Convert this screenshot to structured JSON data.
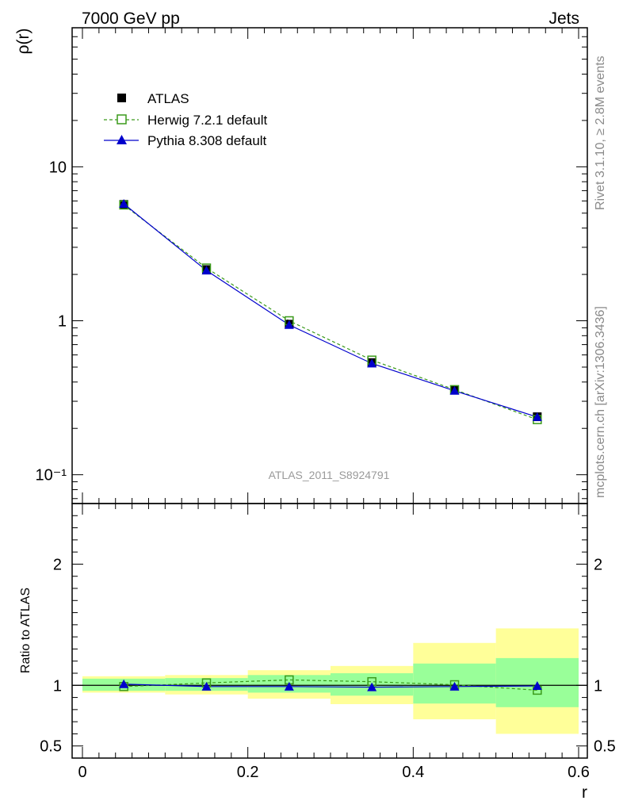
{
  "header": {
    "left": "7000 GeV pp",
    "right": "Jets"
  },
  "side_labels": {
    "rivet": "Rivet 3.1.10, ≥ 2.8M events",
    "source": "mcplots.cern.ch [arXiv:1306.3436]"
  },
  "watermark": "ATLAS_2011_S8924791",
  "chart_data": [
    {
      "type": "line",
      "panel": "main",
      "ylabel": "ρ(r)",
      "yscale": "log",
      "ylim": [
        0.065,
        80
      ],
      "xlim": [
        -0.015,
        0.6
      ],
      "yticks": [
        {
          "value": 10,
          "label": "10"
        },
        {
          "value": 1,
          "label": "1"
        },
        {
          "value": 0.1,
          "label": "10⁻¹"
        }
      ],
      "legend_position": "top-left",
      "x": [
        0.05,
        0.15,
        0.25,
        0.35,
        0.45,
        0.55
      ],
      "series": [
        {
          "name": "ATLAS",
          "marker": "filled-square",
          "color": "#000000",
          "values": [
            5.7,
            2.15,
            0.95,
            0.535,
            0.355,
            0.238
          ]
        },
        {
          "name": "Herwig 7.2.1 default",
          "marker": "open-square",
          "dashed": true,
          "color": "#3a9a1a",
          "values": [
            5.65,
            2.2,
            1.0,
            0.555,
            0.357,
            0.228
          ]
        },
        {
          "name": "Pythia 8.308 default",
          "marker": "filled-triangle",
          "color": "#0000cc",
          "values": [
            5.75,
            2.12,
            0.94,
            0.528,
            0.351,
            0.237
          ]
        }
      ]
    },
    {
      "type": "line",
      "panel": "ratio",
      "ylabel": "Ratio to ATLAS",
      "xlabel": "r",
      "ylim": [
        0.4,
        2.5
      ],
      "yticks": [
        {
          "value": 2,
          "label": "2"
        },
        {
          "value": 1,
          "label": "1"
        },
        {
          "value": 0.5,
          "label": "0.5"
        }
      ],
      "xticks": [
        {
          "value": 0,
          "label": "0"
        },
        {
          "value": 0.2,
          "label": "0.2"
        },
        {
          "value": 0.4,
          "label": "0.4"
        },
        {
          "value": 0.6,
          "label": "0.6"
        }
      ],
      "x": [
        0.05,
        0.15,
        0.25,
        0.35,
        0.45,
        0.55
      ],
      "bins": [
        [
          0.0,
          0.1
        ],
        [
          0.1,
          0.2
        ],
        [
          0.2,
          0.3
        ],
        [
          0.3,
          0.4
        ],
        [
          0.4,
          0.5
        ],
        [
          0.5,
          0.6
        ]
      ],
      "band_inner": [
        [
          0.955,
          1.055
        ],
        [
          0.955,
          1.06
        ],
        [
          0.94,
          1.085
        ],
        [
          0.915,
          1.1
        ],
        [
          0.85,
          1.18
        ],
        [
          0.82,
          1.225
        ]
      ],
      "band_outer": [
        [
          0.94,
          1.075
        ],
        [
          0.925,
          1.085
        ],
        [
          0.89,
          1.125
        ],
        [
          0.845,
          1.16
        ],
        [
          0.72,
          1.35
        ],
        [
          0.6,
          1.47
        ]
      ],
      "band_colors": {
        "inner": "#99ff99",
        "outer": "#ffff99"
      },
      "series": [
        {
          "name": "Herwig 7.2.1 default",
          "marker": "open-square",
          "dashed": true,
          "color": "#3a9a1a",
          "values": [
            0.99,
            1.02,
            1.045,
            1.03,
            1.005,
            0.96
          ]
        },
        {
          "name": "Pythia 8.308 default",
          "marker": "filled-triangle",
          "color": "#0000cc",
          "values": [
            1.01,
            0.99,
            0.99,
            0.985,
            0.99,
            0.995
          ]
        }
      ]
    }
  ]
}
